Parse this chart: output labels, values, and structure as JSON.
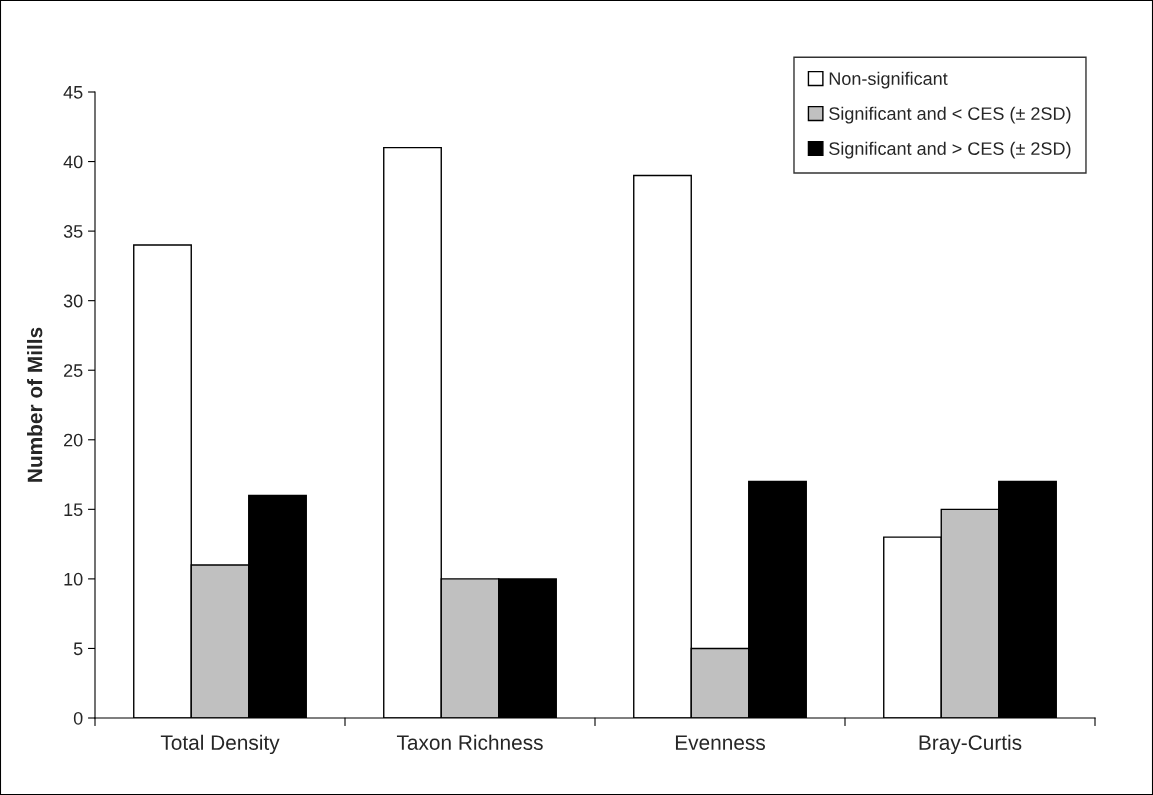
{
  "chart_data": {
    "type": "bar",
    "ylabel": "Number of Mills",
    "categories": [
      "Total Density",
      "Taxon Richness",
      "Evenness",
      "Bray-Curtis"
    ],
    "series": [
      {
        "name": "Non-significant",
        "color": "#ffffff",
        "values": [
          34,
          41,
          39,
          13
        ]
      },
      {
        "name": "Significant and < CES (± 2SD)",
        "color": "#c0c0c0",
        "values": [
          11,
          10,
          5,
          15
        ]
      },
      {
        "name": "Significant and > CES (± 2SD)",
        "color": "#000000",
        "values": [
          16,
          10,
          17,
          17
        ]
      }
    ],
    "ylim": [
      0,
      45
    ],
    "yticks": [
      0,
      5,
      10,
      15,
      20,
      25,
      30,
      35,
      40,
      45
    ],
    "grid": false,
    "legend": "top right"
  }
}
